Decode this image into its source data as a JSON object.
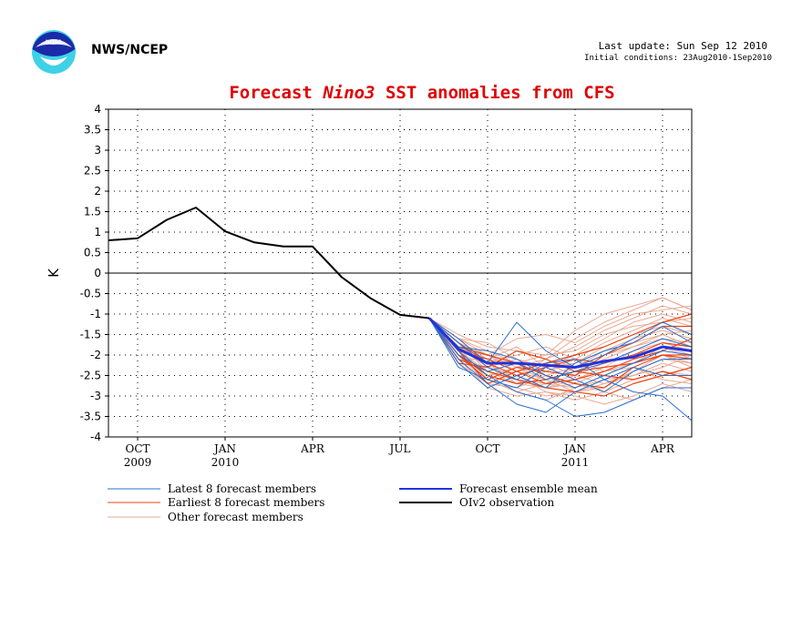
{
  "header": {
    "agency": "NWS/NCEP",
    "last_update": "Last update: Sun Sep 12 2010",
    "initial_conditions": "Initial conditions: 23Aug2010-1Sep2010"
  },
  "chart_data": {
    "type": "line",
    "title_parts": [
      "Forecast ",
      "Nino3",
      " SST anomalies from CFS"
    ],
    "ylabel": "K",
    "xlabel": "",
    "ylim": [
      -4,
      4
    ],
    "xlim": [
      "2009-09",
      "2011-05"
    ],
    "grid": true,
    "colors": {
      "title": "#e00000",
      "observation": "#000000",
      "mean": "#2233dd",
      "latest": "#2a6fd0",
      "earliest": "#e84515",
      "other": "#e8aa95"
    },
    "yticks": [
      4,
      3.5,
      3,
      2.5,
      2,
      1.5,
      1,
      0.5,
      0,
      -0.5,
      -1,
      -1.5,
      -2,
      -2.5,
      -3,
      -3.5,
      -4
    ],
    "xticks": [
      {
        "month": "2009-10",
        "label": "OCT",
        "year": "2009"
      },
      {
        "month": "2010-01",
        "label": "JAN",
        "year": "2010"
      },
      {
        "month": "2010-04",
        "label": "APR",
        "year": ""
      },
      {
        "month": "2010-07",
        "label": "JUL",
        "year": ""
      },
      {
        "month": "2010-10",
        "label": "OCT",
        "year": ""
      },
      {
        "month": "2011-01",
        "label": "JAN",
        "year": "2011"
      },
      {
        "month": "2011-04",
        "label": "APR",
        "year": ""
      }
    ],
    "observation": {
      "name": "OIv2 observation",
      "x": [
        "2009-09",
        "2009-10",
        "2009-11",
        "2009-12",
        "2010-01",
        "2010-02",
        "2010-03",
        "2010-04",
        "2010-05",
        "2010-06",
        "2010-07",
        "2010-08"
      ],
      "values": [
        0.8,
        0.85,
        1.3,
        1.6,
        1.02,
        0.75,
        0.65,
        0.65,
        -0.1,
        -0.62,
        -1.02,
        -1.1
      ]
    },
    "forecast_months": [
      "2010-08",
      "2010-09",
      "2010-10",
      "2010-11",
      "2010-12",
      "2011-01",
      "2011-02",
      "2011-03",
      "2011-04",
      "2011-05"
    ],
    "ensemble_mean": {
      "name": "Forecast ensemble mean",
      "values": [
        -1.1,
        -1.85,
        -2.2,
        -2.2,
        -2.25,
        -2.3,
        -2.15,
        -2.05,
        -1.8,
        -1.9
      ]
    },
    "latest_members": {
      "name": "Latest 8 forecast members",
      "series": [
        [
          -1.1,
          -2.1,
          -2.7,
          -3.2,
          -3.4,
          -2.9,
          -2.6,
          -2.9,
          -3.0,
          -3.6
        ],
        [
          -1.1,
          -1.9,
          -2.5,
          -2.9,
          -3.1,
          -3.5,
          -3.4,
          -3.1,
          -2.8,
          -2.8
        ],
        [
          -1.1,
          -1.6,
          -2.2,
          -1.2,
          -1.9,
          -2.3,
          -2.0,
          -1.6,
          -1.2,
          -1.5
        ],
        [
          -1.1,
          -2.0,
          -2.4,
          -2.2,
          -2.6,
          -2.4,
          -2.2,
          -1.9,
          -1.6,
          -1.8
        ],
        [
          -1.1,
          -2.3,
          -2.6,
          -2.8,
          -2.3,
          -2.6,
          -2.9,
          -2.4,
          -2.1,
          -2.1
        ],
        [
          -1.1,
          -1.8,
          -1.9,
          -2.1,
          -2.5,
          -2.8,
          -2.5,
          -2.2,
          -1.9,
          -2.0
        ],
        [
          -1.1,
          -2.2,
          -2.8,
          -2.5,
          -2.8,
          -2.2,
          -1.9,
          -1.7,
          -1.3,
          -1.7
        ],
        [
          -1.1,
          -1.7,
          -2.3,
          -2.6,
          -2.2,
          -2.1,
          -2.6,
          -2.3,
          -2.5,
          -2.5
        ]
      ]
    },
    "earliest_members": {
      "name": "Earliest 8 forecast members",
      "series": [
        [
          -1.1,
          -2.0,
          -2.6,
          -2.3,
          -2.4,
          -2.5,
          -2.0,
          -1.7,
          -1.3,
          -1.3
        ],
        [
          -1.1,
          -2.1,
          -2.4,
          -2.6,
          -2.8,
          -2.9,
          -3.0,
          -2.7,
          -2.5,
          -2.3
        ],
        [
          -1.1,
          -1.9,
          -2.7,
          -2.4,
          -2.2,
          -2.0,
          -1.8,
          -1.5,
          -1.2,
          -1.0
        ],
        [
          -1.1,
          -1.8,
          -2.0,
          -2.2,
          -2.5,
          -2.7,
          -2.8,
          -2.3,
          -2.0,
          -2.1
        ],
        [
          -1.1,
          -2.2,
          -2.3,
          -1.9,
          -2.1,
          -2.4,
          -2.5,
          -2.6,
          -2.4,
          -2.6
        ],
        [
          -1.1,
          -1.7,
          -2.2,
          -2.5,
          -2.3,
          -2.1,
          -2.2,
          -2.0,
          -1.7,
          -1.8
        ],
        [
          -1.1,
          -2.0,
          -2.5,
          -2.7,
          -2.6,
          -2.4,
          -2.3,
          -2.2,
          -2.0,
          -2.0
        ],
        [
          -1.1,
          -1.9,
          -2.1,
          -2.4,
          -2.7,
          -2.6,
          -2.4,
          -2.1,
          -1.9,
          -1.6
        ]
      ]
    },
    "other_members": {
      "name": "Other forecast members",
      "series": [
        [
          -1.1,
          -1.5,
          -1.8,
          -1.9,
          -2.0,
          -1.4,
          -1.0,
          -0.8,
          -0.6,
          -0.9
        ],
        [
          -1.1,
          -1.6,
          -2.0,
          -1.6,
          -1.5,
          -1.7,
          -1.3,
          -1.0,
          -0.9,
          -0.8
        ],
        [
          -1.1,
          -1.7,
          -2.3,
          -2.5,
          -2.1,
          -1.6,
          -1.2,
          -0.9,
          -0.6,
          -0.9
        ],
        [
          -1.1,
          -1.8,
          -2.1,
          -1.8,
          -2.3,
          -2.0,
          -1.6,
          -1.2,
          -1.0,
          -1.2
        ],
        [
          -1.1,
          -1.9,
          -2.4,
          -2.6,
          -2.7,
          -2.3,
          -1.9,
          -1.6,
          -1.4,
          -1.6
        ],
        [
          -1.1,
          -2.0,
          -2.6,
          -2.9,
          -3.1,
          -2.8,
          -2.5,
          -2.2,
          -2.0,
          -2.3
        ],
        [
          -1.1,
          -1.6,
          -1.9,
          -2.2,
          -2.5,
          -2.7,
          -2.9,
          -3.1,
          -2.8,
          -2.6
        ],
        [
          -1.1,
          -2.1,
          -2.8,
          -3.0,
          -2.9,
          -3.0,
          -3.2,
          -3.0,
          -2.7,
          -2.9
        ],
        [
          -1.1,
          -1.8,
          -2.2,
          -2.0,
          -1.8,
          -2.1,
          -2.4,
          -2.2,
          -1.8,
          -2.0
        ],
        [
          -1.1,
          -1.7,
          -2.0,
          -2.3,
          -2.6,
          -2.4,
          -2.1,
          -1.8,
          -1.5,
          -1.4
        ],
        [
          -1.1,
          -2.0,
          -2.5,
          -2.4,
          -2.2,
          -2.5,
          -2.7,
          -2.4,
          -2.1,
          -2.2
        ],
        [
          -1.1,
          -1.9,
          -2.4,
          -2.7,
          -2.8,
          -2.6,
          -2.3,
          -1.9,
          -1.7,
          -1.9
        ],
        [
          -1.1,
          -1.6,
          -1.7,
          -2.1,
          -2.4,
          -2.1,
          -1.7,
          -1.4,
          -1.1,
          -1.3
        ],
        [
          -1.1,
          -2.2,
          -2.7,
          -2.8,
          -2.5,
          -2.3,
          -2.0,
          -1.8,
          -1.6,
          -1.7
        ],
        [
          -1.1,
          -1.8,
          -2.3,
          -2.5,
          -2.9,
          -3.1,
          -2.9,
          -2.6,
          -2.4,
          -2.5
        ],
        [
          -1.1,
          -1.7,
          -2.1,
          -2.2,
          -2.0,
          -1.9,
          -1.5,
          -1.3,
          -1.2,
          -1.1
        ],
        [
          -1.1,
          -2.0,
          -2.2,
          -2.6,
          -2.7,
          -2.8,
          -2.6,
          -2.5,
          -2.2,
          -2.4
        ],
        [
          -1.1,
          -1.9,
          -2.5,
          -2.3,
          -2.1,
          -1.8,
          -1.4,
          -1.1,
          -0.8,
          -1.0
        ],
        [
          -1.1,
          -1.8,
          -2.6,
          -2.9,
          -2.7,
          -2.5,
          -2.2,
          -2.0,
          -1.8,
          -2.1
        ],
        [
          -1.1,
          -2.1,
          -2.3,
          -2.1,
          -2.3,
          -2.2,
          -1.8,
          -1.5,
          -1.3,
          -1.5
        ],
        [
          -1.1,
          -1.7,
          -2.4,
          -2.6,
          -2.8,
          -2.7,
          -2.4,
          -2.3,
          -2.6,
          -2.7
        ],
        [
          -1.1,
          -1.9,
          -2.0,
          -2.4,
          -2.6,
          -2.9,
          -2.8,
          -2.4,
          -2.0,
          -2.2
        ],
        [
          -1.1,
          -1.6,
          -2.2,
          -2.7,
          -2.4,
          -2.2,
          -1.9,
          -1.7,
          -1.5,
          -1.8
        ],
        [
          -1.1,
          -2.0,
          -2.7,
          -2.8,
          -3.0,
          -2.9,
          -2.7,
          -2.5,
          -2.3,
          -2.0
        ]
      ]
    },
    "legend": {
      "position": "bottom",
      "entries": [
        {
          "label": "Latest 8 forecast members",
          "color": "#2a6fd0"
        },
        {
          "label": "Earliest 8 forecast members",
          "color": "#e84515"
        },
        {
          "label": "Other forecast members",
          "color": "#e8aa95"
        },
        {
          "label": "Forecast ensemble mean",
          "color": "#2233dd"
        },
        {
          "label": "OIv2 observation",
          "color": "#000000"
        }
      ]
    }
  }
}
